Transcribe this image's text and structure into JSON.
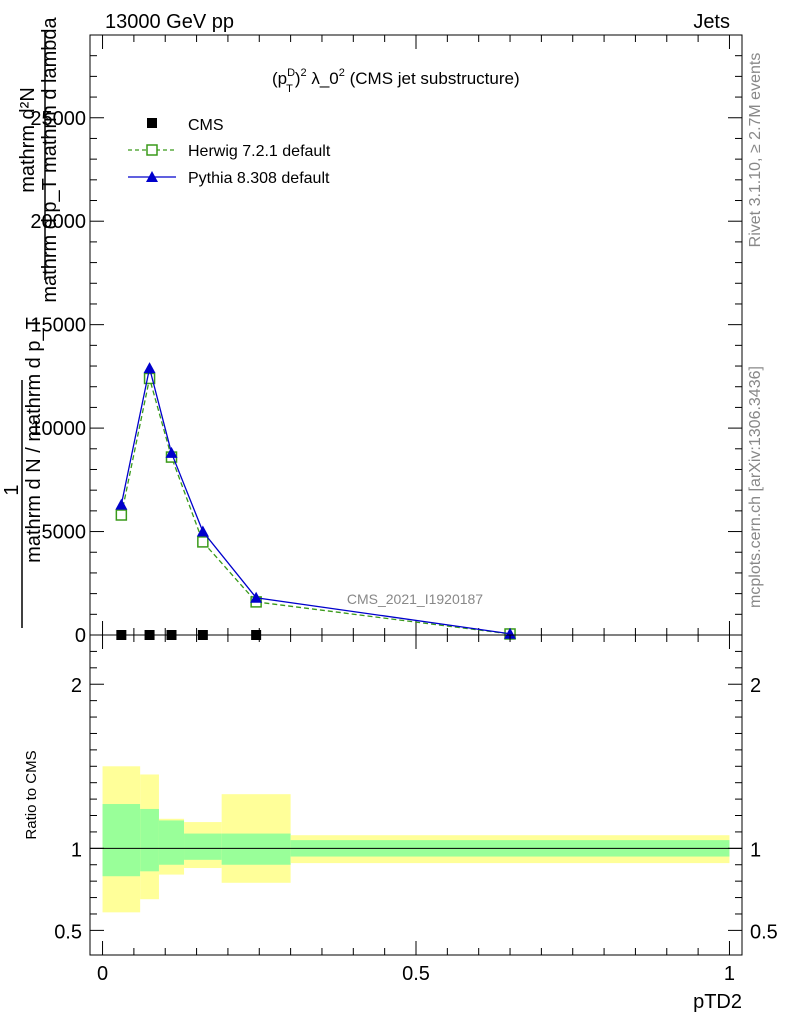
{
  "header": {
    "left": "13000 GeV pp",
    "right": "Jets"
  },
  "side_labels": {
    "rivet": "Rivet 3.1.10, ≥ 2.7M events",
    "mcplots": "mcplots.cern.ch [arXiv:1306.3436]"
  },
  "watermark": "CMS_2021_I1920187",
  "chart_data": [
    {
      "type": "line",
      "title": "(p_T^D)^2 λ_0^2 (CMS jet substructure)",
      "title_parts": {
        "a": "(p",
        "sup1": "D",
        "sub1": "T",
        "b": ")",
        "sup2": "2",
        "c": " λ_0",
        "sup3": "2",
        "d": " (CMS jet substructure)"
      },
      "ylabel_top": "mathrm d²N",
      "ylabel_mid": "mathrm d p_T mathrm d lambda",
      "ylabel_one": "1",
      "ylabel_bottom": "mathrm d N / mathrm d p_T",
      "xlim": [
        -0.02,
        1.02
      ],
      "ylim": [
        0,
        29000
      ],
      "yticks": [
        0,
        5000,
        10000,
        15000,
        20000,
        25000
      ],
      "ytick_labels": [
        "0",
        "5000",
        "10000",
        "15000",
        "20000",
        "25000"
      ],
      "legend_position": "top-left",
      "series": [
        {
          "name": "CMS",
          "color": "#000000",
          "x": [
            0.03,
            0.075,
            0.11,
            0.16,
            0.245
          ],
          "y": [
            0,
            0,
            0,
            0,
            0
          ]
        },
        {
          "name": "Herwig 7.2.1 default",
          "color": "#3a9a1a",
          "x": [
            0.03,
            0.075,
            0.11,
            0.16,
            0.245,
            0.65
          ],
          "y": [
            5800,
            12400,
            8600,
            4500,
            1600,
            50
          ]
        },
        {
          "name": "Pythia 8.308 default",
          "color": "#0000cc",
          "x": [
            0.03,
            0.075,
            0.11,
            0.16,
            0.245,
            0.65
          ],
          "y": [
            6300,
            12900,
            8800,
            5000,
            1800,
            60
          ]
        }
      ]
    },
    {
      "type": "area",
      "ylabel": "Ratio to CMS",
      "xlabel": "pTD2",
      "xlim": [
        -0.02,
        1.02
      ],
      "ylim": [
        0.35,
        2.3
      ],
      "yticks": [
        0.5,
        1,
        2
      ],
      "ytick_labels": [
        "0.5",
        "1",
        "2"
      ],
      "xticks": [
        0,
        0.5,
        1
      ],
      "xtick_labels": [
        "0",
        "0.5",
        "1"
      ],
      "bins": [
        {
          "x0": 0.0,
          "x1": 0.06,
          "inner": [
            0.83,
            1.27
          ],
          "outer": [
            0.61,
            1.5
          ]
        },
        {
          "x0": 0.06,
          "x1": 0.09,
          "inner": [
            0.86,
            1.24
          ],
          "outer": [
            0.69,
            1.45
          ]
        },
        {
          "x0": 0.09,
          "x1": 0.13,
          "inner": [
            0.9,
            1.17
          ],
          "outer": [
            0.84,
            1.18
          ]
        },
        {
          "x0": 0.13,
          "x1": 0.19,
          "inner": [
            0.93,
            1.09
          ],
          "outer": [
            0.88,
            1.16
          ]
        },
        {
          "x0": 0.19,
          "x1": 0.3,
          "inner": [
            0.9,
            1.09
          ],
          "outer": [
            0.79,
            1.33
          ]
        },
        {
          "x0": 0.3,
          "x1": 1.0,
          "inner": [
            0.95,
            1.05
          ],
          "outer": [
            0.91,
            1.08
          ]
        }
      ]
    }
  ]
}
